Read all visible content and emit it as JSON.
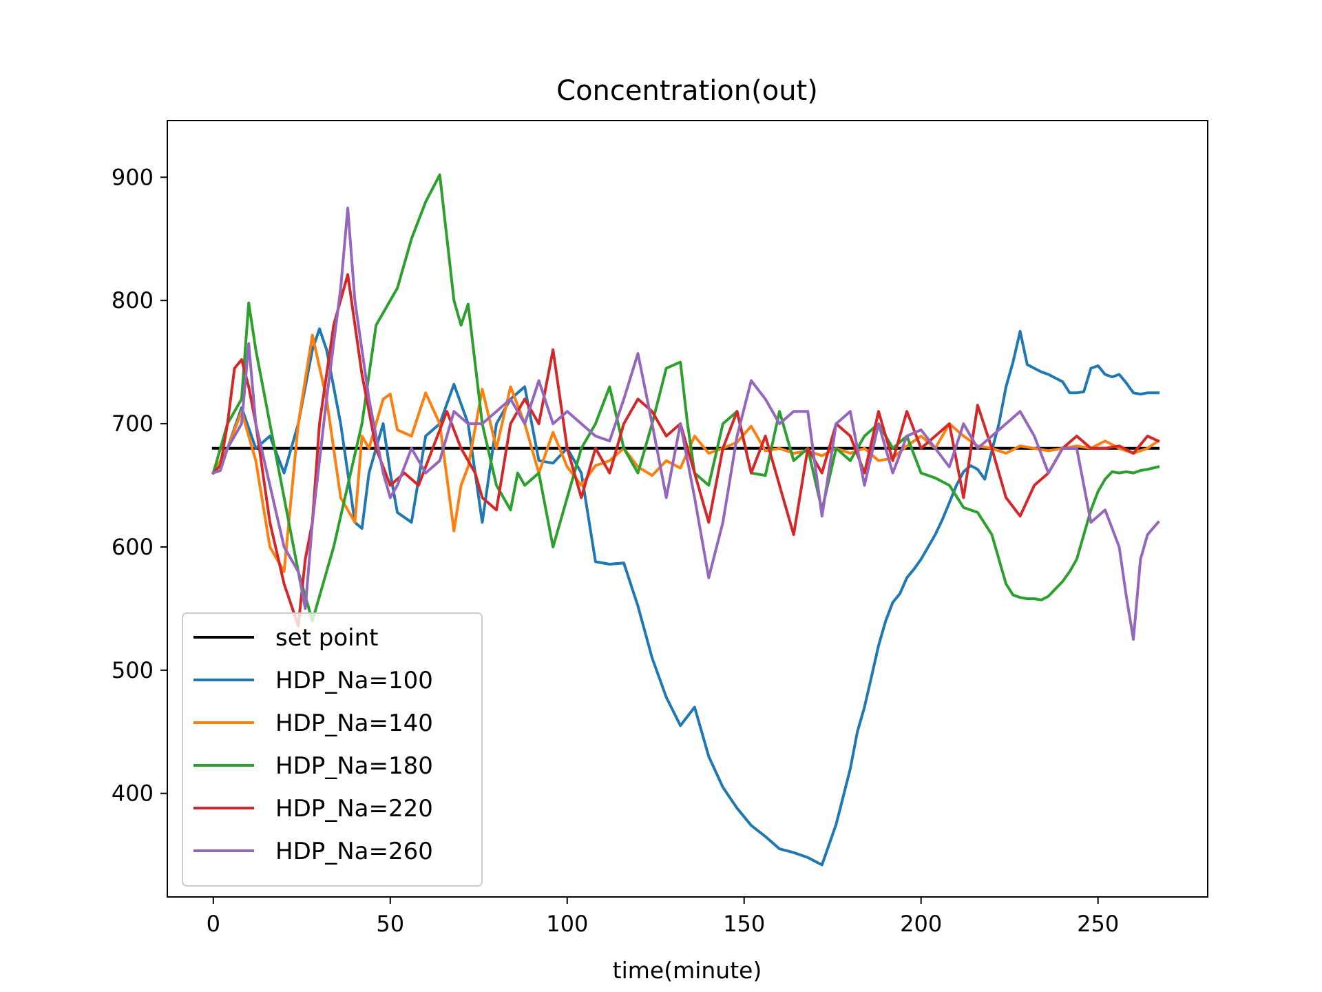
{
  "chart_data": {
    "type": "line",
    "title": "Concentration(out)",
    "xlabel": "time(minute)",
    "ylabel": "",
    "xlim": [
      -13,
      281
    ],
    "ylim": [
      316,
      946
    ],
    "xticks": [
      0,
      50,
      100,
      150,
      200,
      250
    ],
    "yticks": [
      400,
      500,
      600,
      700,
      800,
      900
    ],
    "grid": false,
    "legend_position": "lower-left",
    "series": [
      {
        "name": "set point",
        "color": "#000000",
        "x": [
          0,
          267
        ],
        "y": [
          680,
          680
        ]
      },
      {
        "name": "HDP_Na=100",
        "color": "#1f77b4",
        "x": [
          0,
          4,
          8,
          12,
          16,
          20,
          24,
          28,
          30,
          32,
          36,
          40,
          42,
          44,
          48,
          50,
          52,
          56,
          60,
          64,
          68,
          72,
          76,
          80,
          84,
          88,
          92,
          96,
          100,
          104,
          108,
          112,
          116,
          120,
          124,
          128,
          132,
          136,
          138,
          140,
          144,
          148,
          152,
          156,
          160,
          164,
          168,
          172,
          176,
          180,
          182,
          184,
          186,
          188,
          190,
          192,
          194,
          196,
          198,
          200,
          202,
          204,
          206,
          208,
          210,
          212,
          214,
          216,
          218,
          220,
          222,
          224,
          226,
          228,
          230,
          232,
          234,
          236,
          238,
          240,
          242,
          244,
          246,
          248,
          250,
          252,
          254,
          256,
          258,
          260,
          262,
          264,
          267
        ],
        "y": [
          660,
          680,
          713,
          680,
          690,
          660,
          700,
          760,
          777,
          760,
          700,
          620,
          615,
          660,
          700,
          660,
          628,
          620,
          690,
          700,
          732,
          700,
          620,
          700,
          720,
          730,
          670,
          668,
          680,
          660,
          588,
          586,
          587,
          552,
          510,
          478,
          455,
          470,
          450,
          430,
          405,
          388,
          374,
          365,
          355,
          352,
          348,
          342,
          375,
          420,
          450,
          470,
          495,
          520,
          540,
          555,
          562,
          575,
          582,
          590,
          600,
          610,
          622,
          636,
          650,
          661,
          666,
          663,
          655,
          678,
          700,
          730,
          750,
          775,
          748,
          745,
          742,
          740,
          737,
          734,
          725,
          725,
          726,
          745,
          747,
          740,
          738,
          740,
          733,
          725,
          724,
          725,
          725
        ]
      },
      {
        "name": "HDP_Na=140",
        "color": "#ff7f0e",
        "x": [
          0,
          4,
          8,
          12,
          16,
          20,
          24,
          28,
          32,
          36,
          40,
          42,
          44,
          48,
          50,
          52,
          56,
          60,
          64,
          68,
          70,
          72,
          76,
          80,
          84,
          88,
          92,
          96,
          100,
          104,
          108,
          112,
          116,
          120,
          124,
          128,
          132,
          136,
          140,
          144,
          148,
          152,
          156,
          160,
          164,
          168,
          172,
          176,
          180,
          184,
          188,
          192,
          196,
          200,
          204,
          208,
          212,
          216,
          220,
          224,
          228,
          232,
          236,
          240,
          244,
          248,
          252,
          256,
          260,
          264,
          267
        ],
        "y": [
          660,
          680,
          710,
          670,
          600,
          580,
          700,
          772,
          720,
          640,
          620,
          690,
          680,
          720,
          724,
          695,
          690,
          725,
          700,
          613,
          650,
          665,
          728,
          680,
          730,
          700,
          660,
          693,
          665,
          650,
          666,
          670,
          680,
          665,
          658,
          670,
          664,
          690,
          676,
          680,
          685,
          698,
          678,
          680,
          676,
          678,
          674,
          680,
          676,
          680,
          670,
          672,
          682,
          690,
          680,
          700,
          690,
          682,
          680,
          676,
          682,
          680,
          678,
          680,
          682,
          680,
          686,
          680,
          676,
          680,
          686
        ]
      },
      {
        "name": "HDP_Na=180",
        "color": "#2ca02c",
        "x": [
          0,
          4,
          8,
          10,
          12,
          16,
          20,
          24,
          28,
          30,
          34,
          38,
          42,
          46,
          48,
          50,
          52,
          56,
          60,
          64,
          68,
          70,
          72,
          76,
          80,
          84,
          86,
          88,
          92,
          96,
          100,
          104,
          108,
          112,
          116,
          120,
          124,
          128,
          132,
          134,
          136,
          140,
          144,
          148,
          152,
          156,
          160,
          164,
          168,
          172,
          176,
          180,
          184,
          188,
          192,
          196,
          200,
          204,
          208,
          212,
          216,
          220,
          224,
          226,
          228,
          230,
          232,
          234,
          236,
          238,
          240,
          242,
          244,
          246,
          248,
          250,
          252,
          254,
          256,
          258,
          260,
          262,
          264,
          267
        ],
        "y": [
          660,
          700,
          720,
          798,
          760,
          700,
          640,
          580,
          540,
          560,
          600,
          650,
          700,
          780,
          790,
          800,
          810,
          850,
          880,
          902,
          800,
          780,
          797,
          700,
          650,
          630,
          660,
          650,
          660,
          600,
          640,
          680,
          700,
          730,
          680,
          660,
          700,
          745,
          750,
          700,
          660,
          650,
          700,
          710,
          660,
          658,
          710,
          670,
          680,
          630,
          680,
          670,
          690,
          700,
          680,
          690,
          660,
          656,
          650,
          632,
          628,
          610,
          570,
          561,
          559,
          558,
          558,
          557,
          560,
          566,
          572,
          580,
          590,
          610,
          630,
          645,
          655,
          661,
          660,
          661,
          660,
          662,
          663,
          665
        ]
      },
      {
        "name": "HDP_Na=220",
        "color": "#d62728",
        "x": [
          0,
          2,
          4,
          6,
          8,
          10,
          12,
          16,
          20,
          24,
          26,
          28,
          30,
          34,
          38,
          42,
          46,
          50,
          54,
          58,
          62,
          66,
          70,
          74,
          76,
          80,
          84,
          88,
          92,
          96,
          100,
          104,
          108,
          112,
          116,
          120,
          124,
          128,
          132,
          136,
          140,
          144,
          148,
          152,
          156,
          160,
          164,
          168,
          172,
          176,
          180,
          184,
          188,
          192,
          196,
          200,
          204,
          208,
          212,
          216,
          220,
          224,
          228,
          232,
          236,
          240,
          244,
          248,
          252,
          256,
          260,
          264,
          267
        ],
        "y": [
          660,
          666,
          700,
          745,
          752,
          730,
          700,
          620,
          570,
          536,
          590,
          620,
          700,
          780,
          821,
          740,
          680,
          650,
          660,
          650,
          680,
          710,
          680,
          660,
          640,
          630,
          700,
          720,
          700,
          760,
          680,
          640,
          680,
          660,
          700,
          720,
          710,
          690,
          700,
          660,
          620,
          680,
          710,
          660,
          690,
          650,
          610,
          680,
          660,
          700,
          690,
          660,
          710,
          670,
          710,
          680,
          690,
          700,
          640,
          715,
          680,
          640,
          625,
          650,
          660,
          680,
          690,
          680,
          680,
          682,
          676,
          690,
          686
        ]
      },
      {
        "name": "HDP_Na=260",
        "color": "#9467bd",
        "x": [
          0,
          2,
          4,
          8,
          10,
          12,
          16,
          20,
          24,
          26,
          28,
          32,
          36,
          38,
          40,
          44,
          48,
          50,
          52,
          56,
          60,
          64,
          68,
          72,
          76,
          80,
          84,
          88,
          92,
          96,
          100,
          104,
          108,
          112,
          116,
          120,
          124,
          128,
          132,
          136,
          140,
          144,
          148,
          152,
          156,
          160,
          164,
          168,
          172,
          176,
          180,
          184,
          188,
          192,
          196,
          200,
          204,
          208,
          212,
          216,
          220,
          224,
          228,
          232,
          236,
          240,
          244,
          248,
          252,
          256,
          258,
          260,
          262,
          264,
          267
        ],
        "y": [
          660,
          662,
          680,
          700,
          765,
          700,
          650,
          600,
          580,
          550,
          620,
          720,
          810,
          875,
          800,
          720,
          660,
          640,
          650,
          680,
          660,
          670,
          710,
          700,
          700,
          710,
          720,
          700,
          735,
          700,
          710,
          700,
          690,
          686,
          720,
          757,
          700,
          640,
          700,
          640,
          575,
          620,
          690,
          735,
          720,
          700,
          710,
          710,
          625,
          700,
          710,
          650,
          700,
          660,
          690,
          695,
          680,
          665,
          700,
          680,
          690,
          700,
          710,
          690,
          660,
          680,
          680,
          620,
          630,
          600,
          560,
          525,
          590,
          610,
          620
        ]
      }
    ]
  }
}
